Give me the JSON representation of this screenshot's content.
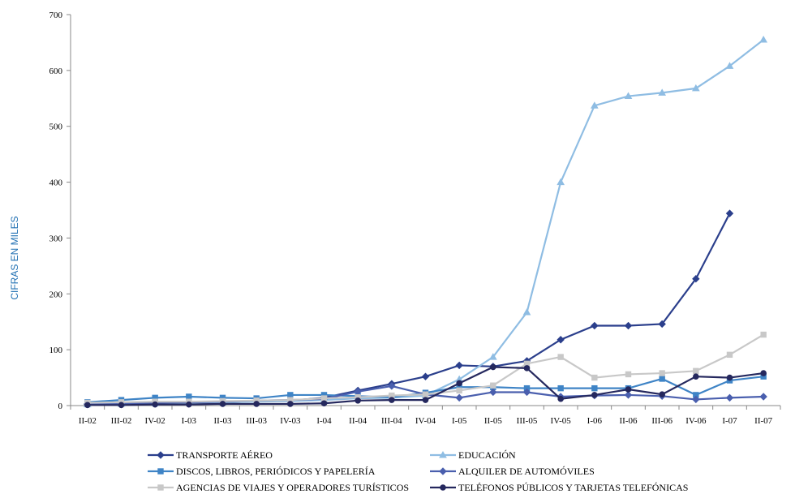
{
  "chart_data": {
    "type": "line",
    "title": "",
    "xlabel": "",
    "ylabel": "CIFRAS EN MILES",
    "ylim": [
      0,
      700
    ],
    "yticks": [
      0,
      100,
      200,
      300,
      400,
      500,
      600,
      700
    ],
    "grid": false,
    "legend_position": "bottom",
    "categories": [
      "II-02",
      "III-02",
      "IV-02",
      "I-03",
      "II-03",
      "III-03",
      "IV-03",
      "I-04",
      "II-04",
      "III-04",
      "IV-04",
      "I-05",
      "II-05",
      "III-05",
      "IV-05",
      "I-06",
      "II-06",
      "III-06",
      "IV-06",
      "I-07",
      "II-07"
    ],
    "series": [
      {
        "name": "TRANSPORTE AÉREO",
        "color": "#2b3f8c",
        "marker": "diamond",
        "values": [
          2,
          2,
          3,
          3,
          5,
          8,
          9,
          14,
          27,
          39,
          52,
          72,
          70,
          80,
          118,
          143,
          143,
          146,
          227,
          344,
          null
        ]
      },
      {
        "name": "EDUCACIÓN",
        "color": "#8fbde3",
        "marker": "triangle",
        "values": [
          2,
          3,
          4,
          5,
          6,
          7,
          8,
          10,
          13,
          14,
          18,
          47,
          87,
          167,
          400,
          537,
          554,
          560,
          568,
          608,
          655
        ]
      },
      {
        "name": "DISCOS, LIBROS, PERIÓDICOS Y PAPELERÍA",
        "color": "#3f84c6",
        "marker": "square",
        "values": [
          6,
          10,
          14,
          16,
          14,
          13,
          19,
          19,
          17,
          15,
          23,
          33,
          33,
          31,
          31,
          31,
          31,
          48,
          19,
          45,
          52
        ]
      },
      {
        "name": "ALQUILER DE AUTOMÓVILES",
        "color": "#4a5fae",
        "marker": "diamond",
        "values": [
          3,
          4,
          5,
          6,
          7,
          9,
          10,
          12,
          25,
          35,
          20,
          14,
          24,
          24,
          16,
          18,
          19,
          17,
          11,
          14,
          16
        ]
      },
      {
        "name": "AGENCIAS DE VIAJES Y OPERADORES TURÍSTICOS",
        "color": "#c8c8c8",
        "marker": "square",
        "values": [
          5,
          6,
          7,
          7,
          8,
          9,
          10,
          13,
          15,
          18,
          20,
          27,
          36,
          75,
          87,
          50,
          56,
          58,
          62,
          91,
          127
        ]
      },
      {
        "name": "TELÉFONOS PÚBLICOS Y TARJETAS TELEFÓNICAS",
        "color": "#25285e",
        "marker": "circle",
        "values": [
          1,
          1,
          2,
          2,
          3,
          3,
          3,
          4,
          9,
          10,
          10,
          40,
          69,
          67,
          12,
          19,
          29,
          20,
          52,
          50,
          58
        ]
      }
    ]
  }
}
